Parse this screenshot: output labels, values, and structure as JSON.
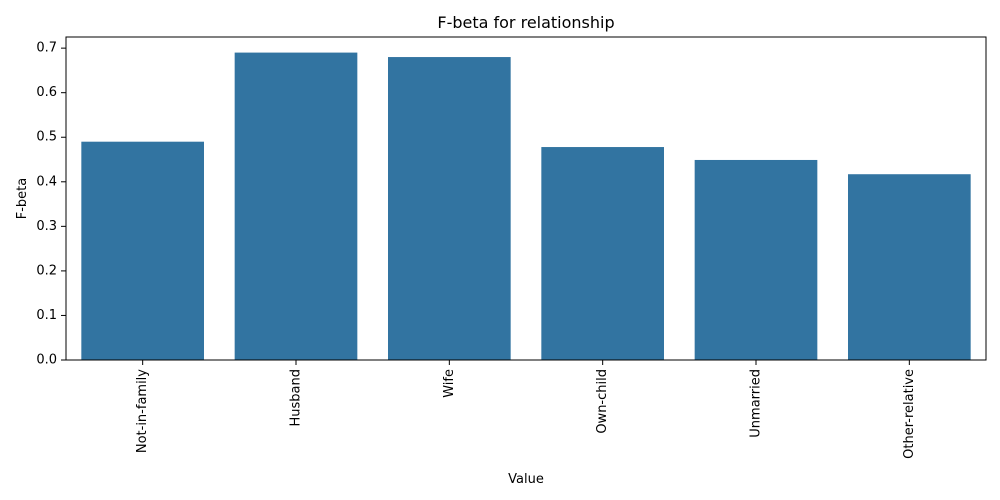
{
  "chart_data": {
    "type": "bar",
    "title": "F-beta for relationship",
    "xlabel": "Value",
    "ylabel": "F-beta",
    "categories": [
      "Not-in-family",
      "Husband",
      "Wife",
      "Own-child",
      "Unmarried",
      "Other-relative"
    ],
    "values": [
      0.49,
      0.69,
      0.68,
      0.478,
      0.449,
      0.417
    ],
    "ylim": [
      0,
      0.725
    ],
    "yticks": [
      "0.0",
      "0.1",
      "0.2",
      "0.3",
      "0.4",
      "0.5",
      "0.6",
      "0.7"
    ],
    "xtick_rotation": "vertical",
    "grid": false,
    "bar_color": "#3274a1"
  }
}
